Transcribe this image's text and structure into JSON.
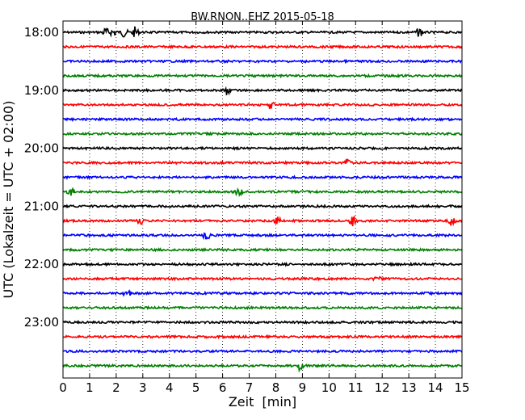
{
  "chart_data": {
    "type": "line",
    "title": "BW.RNON..EHZ 2015-05-18",
    "xlabel": "Zeit  [min]",
    "ylabel": "UTC (Lokalzeit = UTC + 02:00)",
    "xlim": [
      0,
      15
    ],
    "x_ticks": [
      "0",
      "1",
      "2",
      "3",
      "4",
      "5",
      "6",
      "7",
      "8",
      "9",
      "10",
      "11",
      "12",
      "13",
      "14",
      "15"
    ],
    "y_ticks": [
      "18:00",
      "19:00",
      "20:00",
      "21:00",
      "22:00",
      "23:00"
    ],
    "grid": "vertical dotted",
    "trace_colors": [
      "#000000",
      "#ff0000",
      "#0000ff",
      "#008000"
    ],
    "series": [
      {
        "start": "18:00",
        "events_min": [
          1.6,
          1.9,
          2.3,
          2.7,
          13.4
        ]
      },
      {
        "start": "18:15",
        "events_min": []
      },
      {
        "start": "18:30",
        "events_min": []
      },
      {
        "start": "18:45",
        "events_min": []
      },
      {
        "start": "19:00",
        "events_min": [
          6.15
        ]
      },
      {
        "start": "19:15",
        "events_min": [
          7.8
        ]
      },
      {
        "start": "19:30",
        "events_min": []
      },
      {
        "start": "19:45",
        "events_min": []
      },
      {
        "start": "20:00",
        "events_min": []
      },
      {
        "start": "20:15",
        "events_min": [
          10.7
        ]
      },
      {
        "start": "20:30",
        "events_min": []
      },
      {
        "start": "20:45",
        "events_min": [
          0.3,
          6.6
        ]
      },
      {
        "start": "21:00",
        "events_min": []
      },
      {
        "start": "21:15",
        "events_min": [
          2.9,
          8.1,
          10.9,
          14.6
        ]
      },
      {
        "start": "21:30",
        "events_min": [
          5.4
        ]
      },
      {
        "start": "21:45",
        "events_min": []
      },
      {
        "start": "22:00",
        "events_min": []
      },
      {
        "start": "22:15",
        "events_min": [
          11.8
        ]
      },
      {
        "start": "22:30",
        "events_min": [
          2.4
        ]
      },
      {
        "start": "22:45",
        "events_min": []
      },
      {
        "start": "23:00",
        "events_min": []
      },
      {
        "start": "23:15",
        "events_min": []
      },
      {
        "start": "23:30",
        "events_min": []
      },
      {
        "start": "23:45",
        "events_min": [
          8.9
        ]
      }
    ]
  }
}
